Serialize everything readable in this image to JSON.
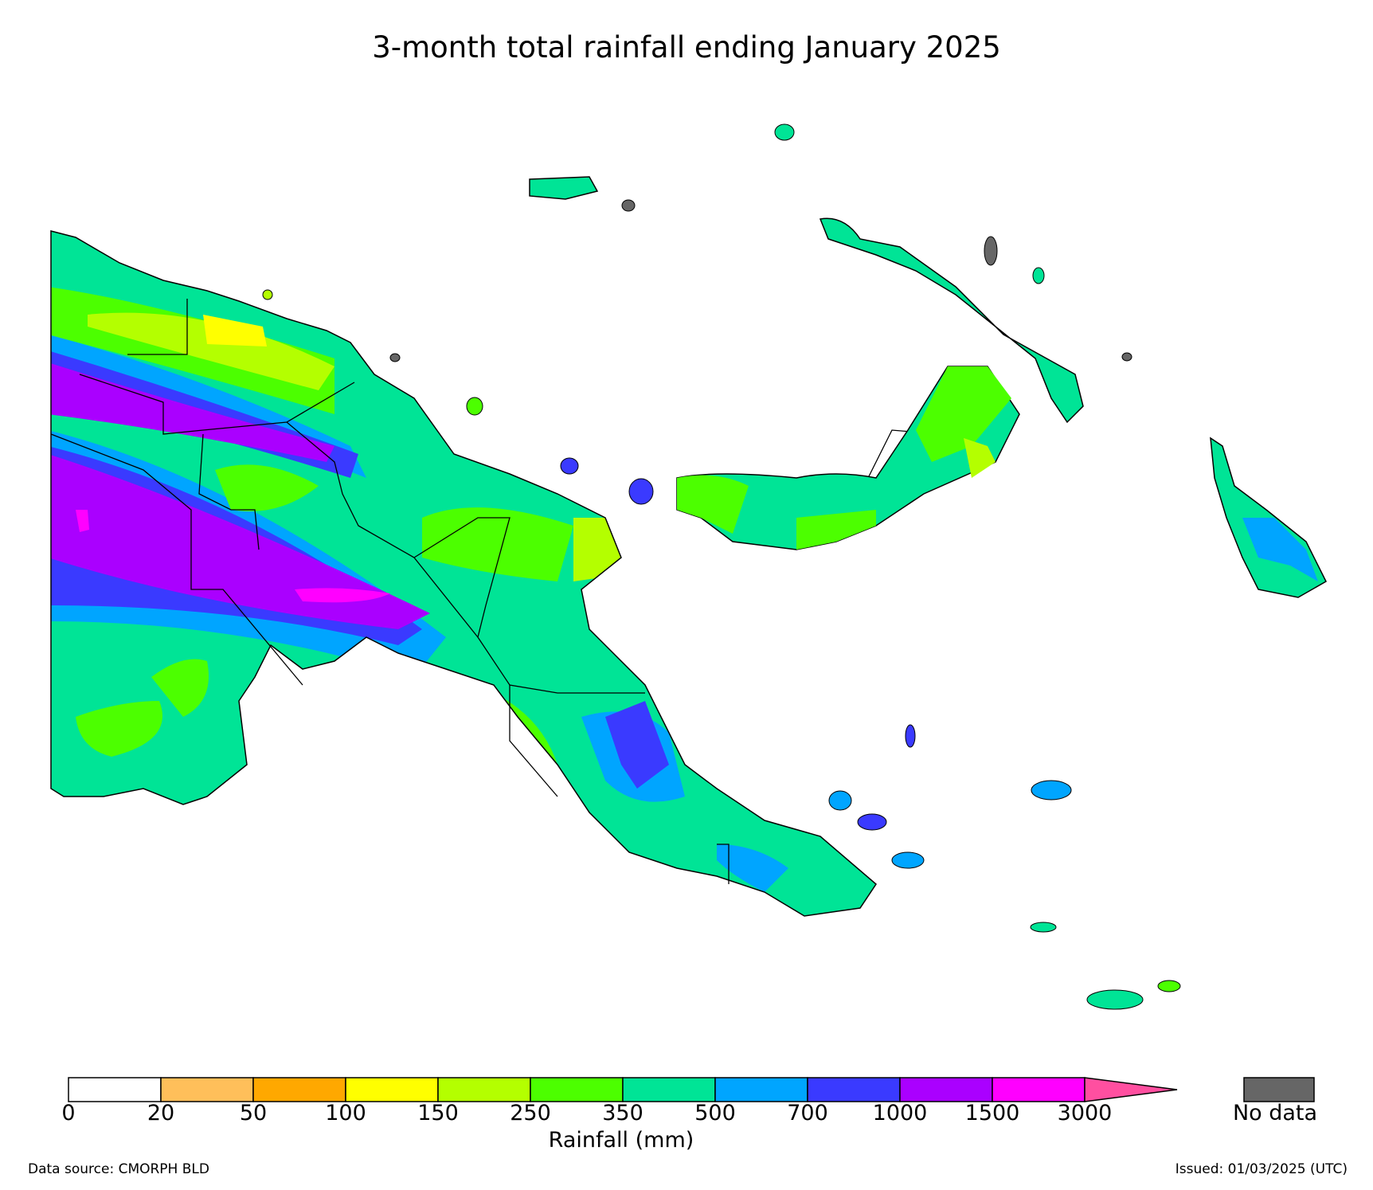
{
  "title": "3-month total rainfall ending January 2025",
  "footer": {
    "source": "Data source: CMORPH BLD",
    "issued": "Issued: 01/03/2025 (UTC)"
  },
  "legend": {
    "title": "Rainfall (mm)",
    "ticks": [
      "0",
      "20",
      "50",
      "100",
      "150",
      "250",
      "350",
      "500",
      "700",
      "1000",
      "1500",
      "3000"
    ],
    "colors": [
      "#ffffff",
      "#ffbf5a",
      "#ffa800",
      "#ffff00",
      "#b4ff00",
      "#4cff00",
      "#00e496",
      "#00a5ff",
      "#3a3aff",
      "#aa00ff",
      "#ff00ff"
    ],
    "extend_color": "#ff4fa0",
    "nodata_label": "No data",
    "nodata_color": "#666666"
  }
}
